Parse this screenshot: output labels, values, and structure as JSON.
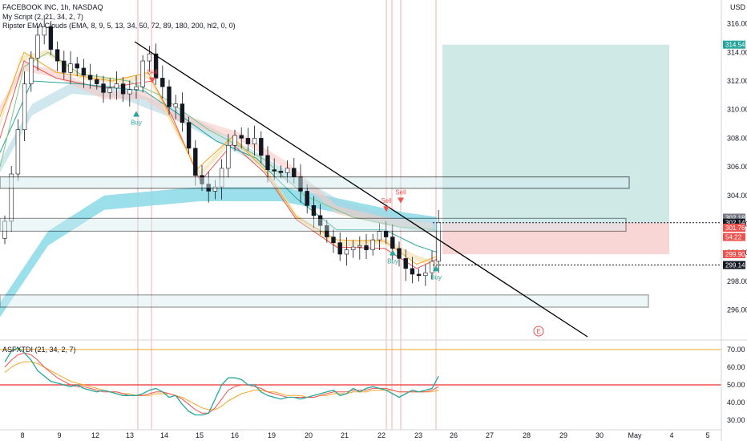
{
  "chart_data": {
    "type": "candlestick",
    "title": "FACEBOOK INC, 1h, NASDAQ",
    "legend": [
      "My Script (2, 21, 34, 2, 7)",
      "Ripster EMA Clouds (EMA, 8, 9, 5, 13, 34, 50, 72, 89, 180, 200, hl2, 0, 0)"
    ],
    "currency": "USD",
    "y_ticks": [
      "316.00",
      "314.00",
      "312.00",
      "310.00",
      "308.00",
      "306.00",
      "304.00",
      "302.00",
      "300.00",
      "298.00",
      "296.00"
    ],
    "ylim": [
      294.8,
      317.1
    ],
    "x_ticks": [
      "8",
      "9",
      "12",
      "13",
      "14",
      "15",
      "16",
      "19",
      "20",
      "21",
      "22",
      "23",
      "26",
      "27",
      "28",
      "29",
      "30",
      "May",
      "4",
      "5"
    ],
    "price_tags": [
      {
        "label": "314.54",
        "value": 314.54,
        "bg": "#26a69a"
      },
      {
        "label": "302.18",
        "value": 302.45,
        "bg": "#787b86"
      },
      {
        "label": "302.14",
        "value": 302.1,
        "bg": "#131722"
      },
      {
        "label": "301.76",
        "value": 301.75,
        "bg": "#ef5350"
      },
      {
        "label": "54:22",
        "value": 301.1,
        "bg": "#ef5350"
      },
      {
        "label": "299.90",
        "value": 299.9,
        "bg": "#ef5350"
      },
      {
        "label": "299.14",
        "value": 299.14,
        "bg": "#131722"
      }
    ],
    "signals": [
      {
        "label": "Sell",
        "x": "12.85",
        "kind": "sell"
      },
      {
        "label": "Buy",
        "x": "12.55",
        "kind": "buy"
      },
      {
        "label": "Sell",
        "x": "22.3",
        "kind": "sell"
      },
      {
        "label": "Sell",
        "x": "22.1",
        "kind": "sell"
      },
      {
        "label": "Buy",
        "x": "22.05",
        "kind": "buy"
      },
      {
        "label": "Buy",
        "x": "23.2",
        "kind": "buy"
      }
    ],
    "earnings_marker": "E",
    "closes": [
      302.2,
      305.5,
      308.6,
      311.8,
      313.6,
      315.2,
      315.8,
      314.2,
      313.4,
      312.6,
      313.2,
      312.9,
      312.4,
      312.1,
      311.8,
      311.2,
      311.5,
      311.8,
      311.1,
      311.4,
      311.6,
      313.4,
      313.9,
      312.2,
      311.6,
      310.2,
      310.4,
      309.1,
      307.3,
      305.4,
      304.8,
      304.3,
      304.6,
      305.9,
      307.5,
      308.2,
      308.0,
      307.6,
      308.0,
      306.8,
      305.8,
      305.7,
      305.6,
      305.9,
      305.3,
      304.3,
      303.3,
      302.6,
      301.9,
      301.1,
      300.7,
      299.9,
      300.2,
      300.4,
      300.5,
      300.2,
      300.9,
      301.5,
      301.1,
      300.3,
      299.6,
      298.9,
      298.5,
      298.4,
      298.6,
      299.4,
      302.1
    ],
    "indicator": {
      "name": "ASFXTDI (21, 34, 2, 7)",
      "y_ticks": [
        "70.00",
        "60.00",
        "50.00",
        "40.00",
        "30.00"
      ],
      "ylim": [
        26,
        74
      ],
      "upper": 70,
      "mid": 50,
      "green": [
        63,
        69,
        71,
        68,
        64,
        58,
        55,
        52,
        51,
        50,
        49,
        50,
        48,
        47,
        46,
        47,
        46,
        45,
        44,
        44,
        44,
        45,
        47,
        48,
        46,
        43,
        44,
        39,
        35,
        33,
        33,
        34,
        42,
        50,
        54,
        54,
        53,
        50,
        50,
        46,
        44,
        43,
        42,
        43,
        43,
        42,
        43,
        44,
        45,
        46,
        47,
        44,
        45,
        48,
        46,
        48,
        49,
        48,
        47,
        45,
        43,
        45,
        47,
        46,
        47,
        48,
        55
      ],
      "red": [
        60,
        64,
        67,
        68,
        67,
        64,
        60,
        57,
        54,
        52,
        50,
        49,
        49,
        48,
        47,
        46,
        46,
        46,
        45,
        44,
        44,
        44,
        45,
        46,
        46,
        45,
        44,
        42,
        39,
        36,
        34,
        34,
        37,
        42,
        47,
        49,
        50,
        50,
        49,
        48,
        46,
        45,
        44,
        43,
        43,
        43,
        43,
        43,
        44,
        45,
        46,
        46,
        46,
        47,
        47,
        47,
        48,
        48,
        48,
        47,
        46,
        46,
        46,
        46,
        46,
        47,
        49
      ],
      "yellow": [
        57,
        60,
        62,
        63,
        63,
        62,
        60,
        58,
        56,
        54,
        52,
        51,
        50,
        49,
        48,
        47,
        46,
        46,
        45,
        45,
        44,
        44,
        44,
        45,
        45,
        45,
        44,
        43,
        41,
        39,
        37,
        36,
        36,
        38,
        41,
        43,
        45,
        46,
        47,
        47,
        46,
        46,
        45,
        44,
        44,
        44,
        43,
        43,
        44,
        44,
        45,
        45,
        45,
        46,
        46,
        46,
        47,
        47,
        47,
        47,
        46,
        46,
        46,
        46,
        46,
        46,
        47
      ]
    }
  }
}
